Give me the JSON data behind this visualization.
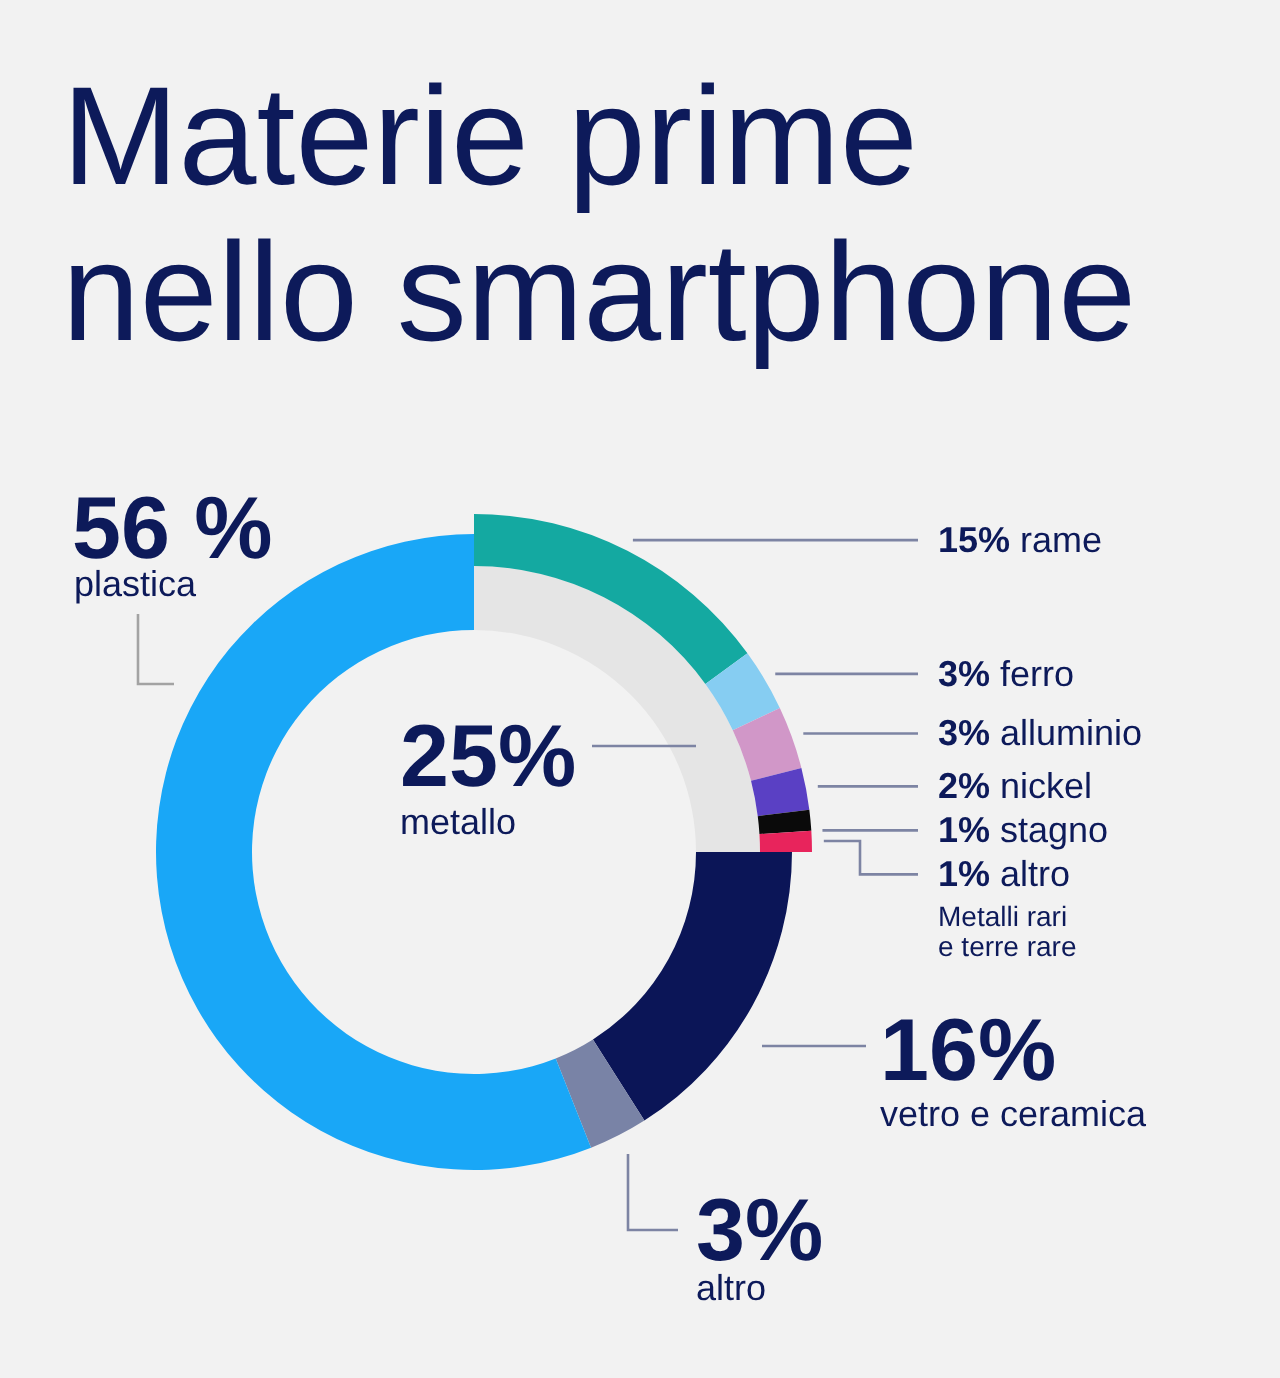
{
  "chart_data": [
    {
      "type": "donut",
      "title": "Materie prime\nnello smartphone",
      "categories": [
        "rame",
        "ferro",
        "alluminio",
        "nickel",
        "stagno",
        "altro",
        "vetro e ceramica",
        "altro",
        "plastica"
      ],
      "values": [
        15,
        3,
        3,
        2,
        1,
        1,
        16,
        3,
        56
      ],
      "value_labels": [
        "15%",
        "3%",
        "3%",
        "2%",
        "1%",
        "1%",
        "16%",
        "3%",
        "56 %"
      ],
      "colors": [
        "#14a9a1",
        "#86cdf2",
        "#d197c8",
        "#5a40c4",
        "#0a0a0a",
        "#e8245c",
        "#0b1557",
        "#7983a6",
        "#19a7f7"
      ],
      "annotations": [
        "Metalli rari\ne terre rare"
      ]
    },
    {
      "type": "pie",
      "categories": [
        "metallo"
      ],
      "values": [
        25
      ],
      "value_labels": [
        "25%"
      ],
      "colors": [
        "#e5e5e5"
      ]
    }
  ]
}
